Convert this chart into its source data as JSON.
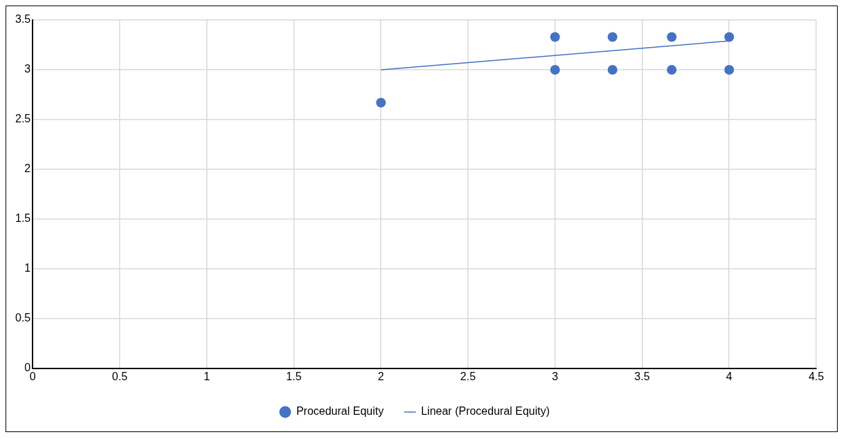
{
  "chart_data": {
    "type": "scatter",
    "xlim": [
      0,
      4.5
    ],
    "xticks": [
      0,
      0.5,
      1,
      1.5,
      2,
      2.5,
      3,
      3.5,
      4,
      4.5
    ],
    "ylim": [
      0,
      3.5
    ],
    "yticks": [
      0,
      0.5,
      1,
      1.5,
      2,
      2.5,
      3,
      3.5
    ],
    "grid": true,
    "legend": "bottom",
    "series": [
      {
        "name": "Procedural Equity",
        "type": "scatter",
        "marker": "circle",
        "color": "#4472c4",
        "x": [
          2,
          3,
          3,
          3.33,
          3.33,
          3.67,
          3.67,
          4,
          4
        ],
        "values": [
          2.67,
          3.33,
          3,
          3.33,
          3,
          3.33,
          3,
          3.33,
          3
        ]
      },
      {
        "name": "Linear (Procedural Equity)",
        "type": "line",
        "marker": "none",
        "color": "#4472c4",
        "x": [
          2,
          4
        ],
        "values": [
          3,
          3.29
        ]
      }
    ]
  }
}
